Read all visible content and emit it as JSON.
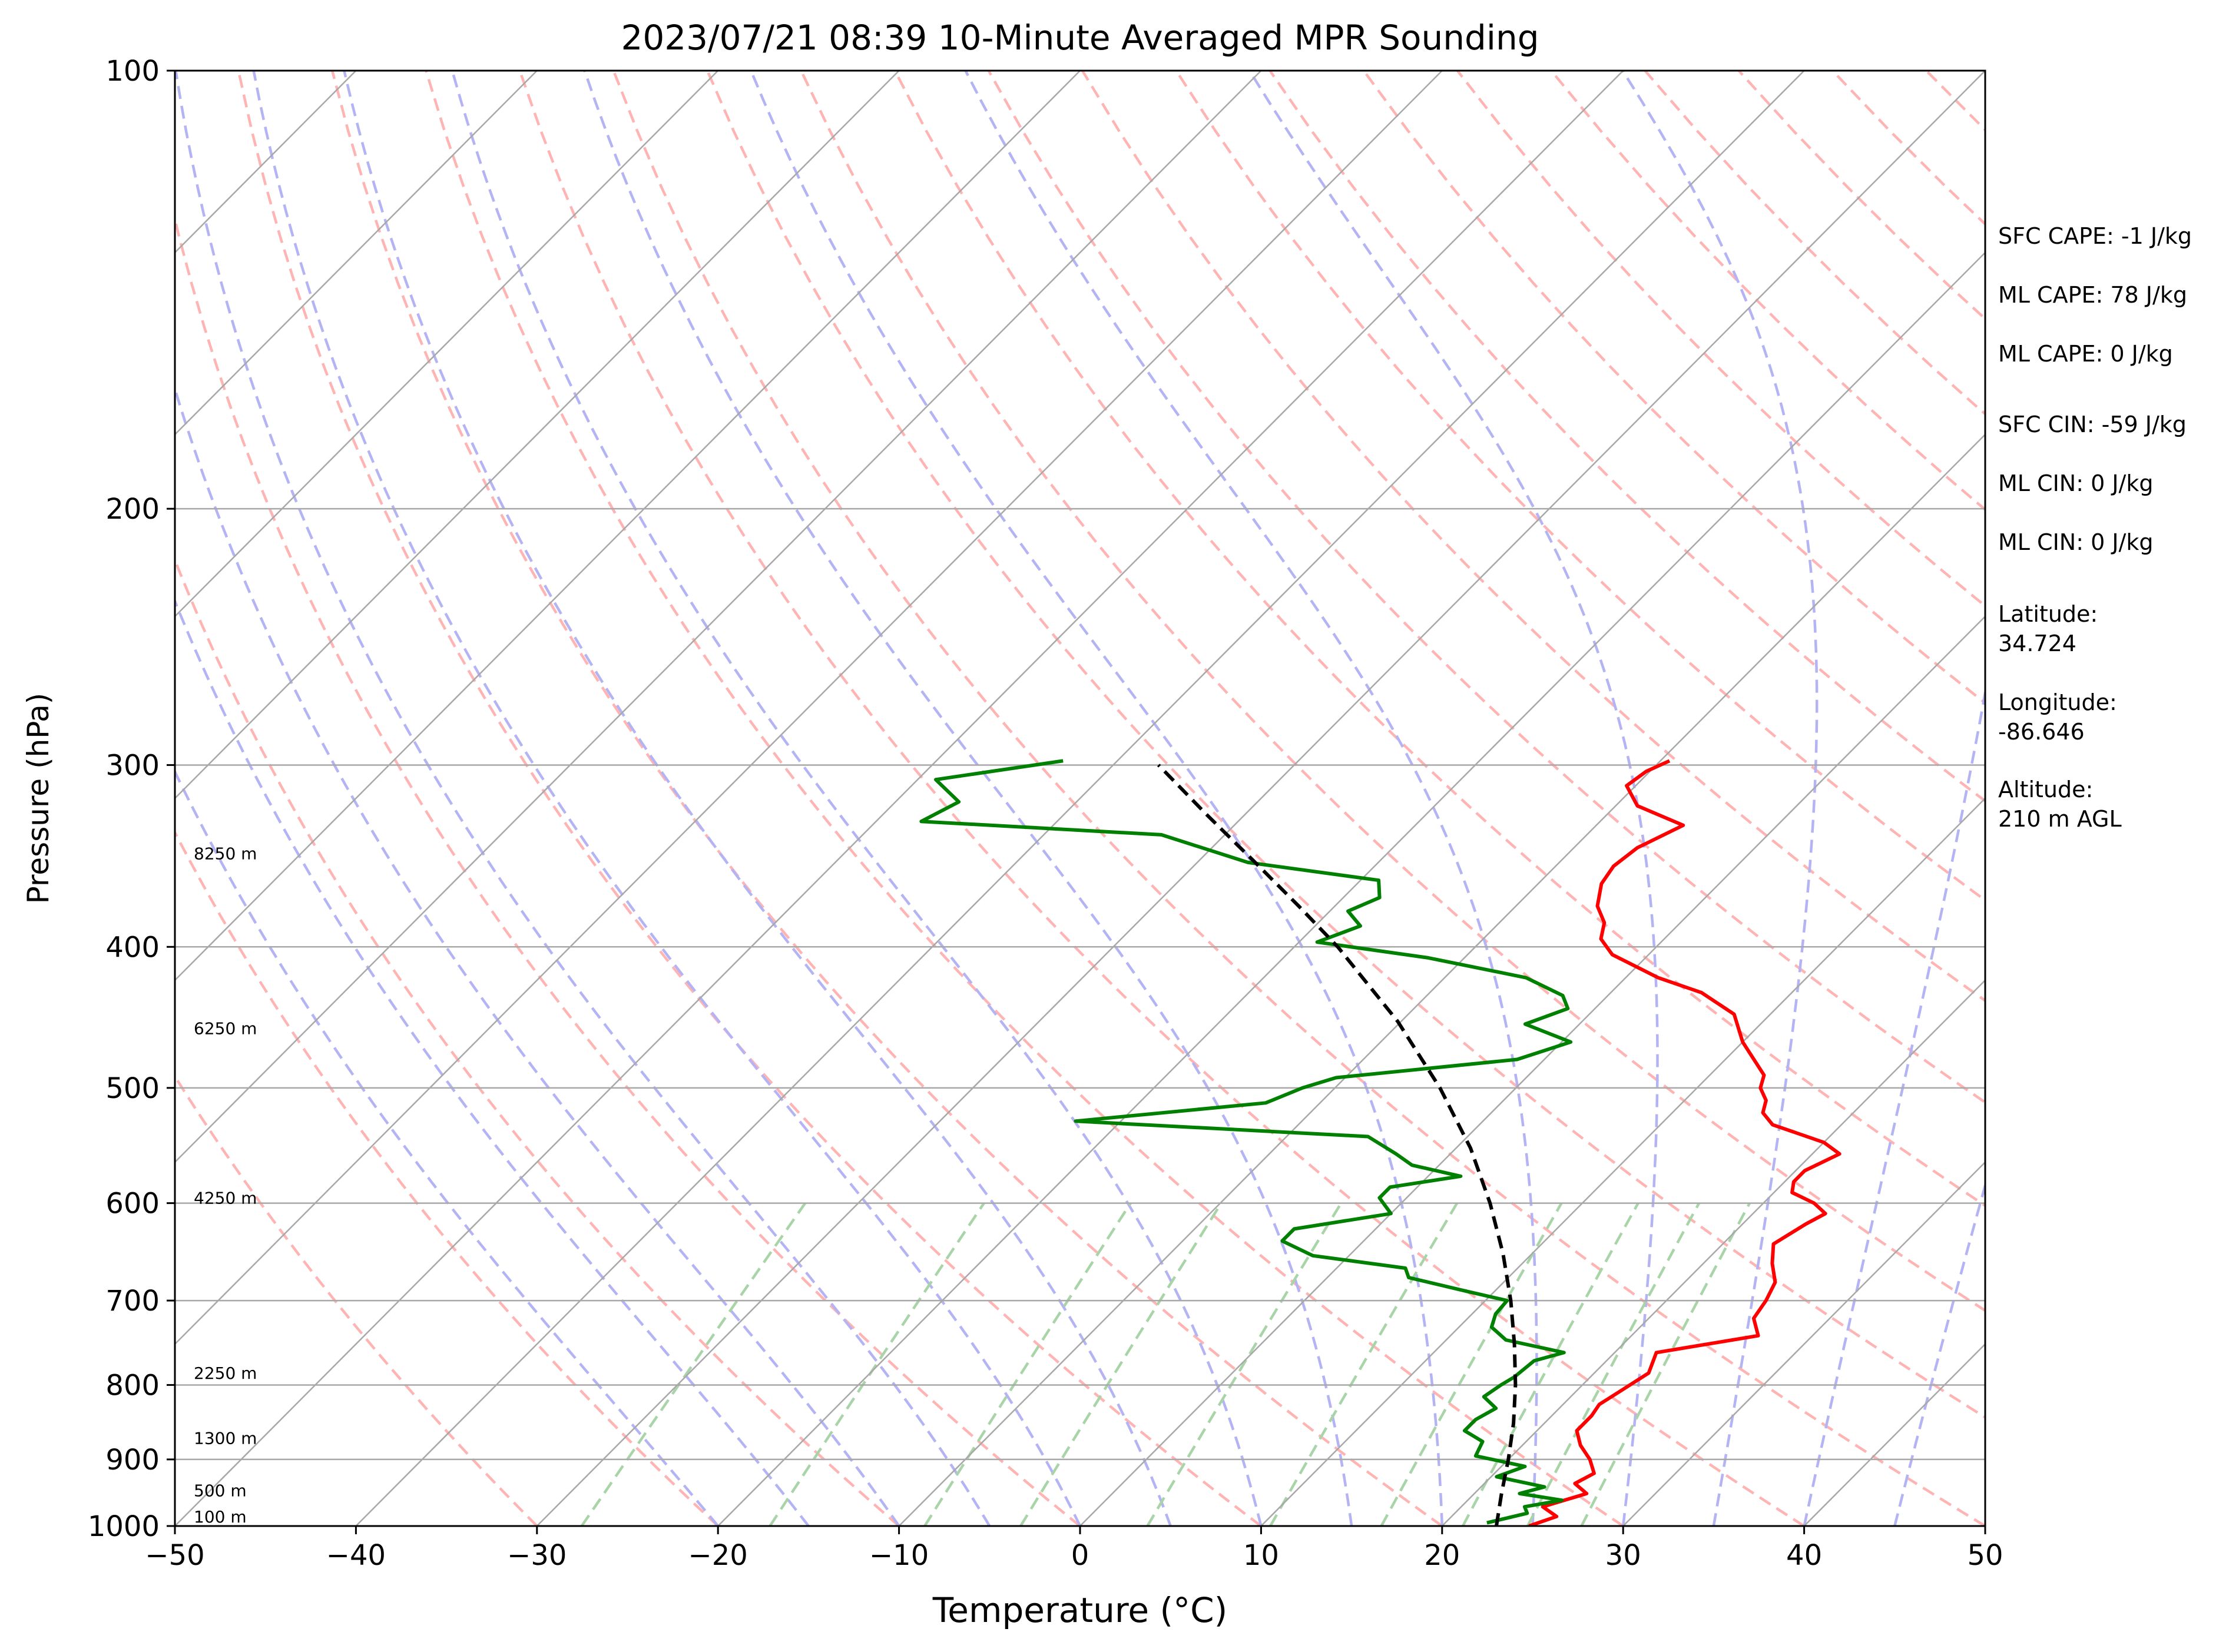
{
  "chart_data": {
    "type": "line",
    "title": "2023/07/21 08:39 10-Minute Averaged MPR Sounding",
    "xlabel": "Temperature (°C)",
    "ylabel": "Pressure (hPa)",
    "xlim": [
      -50,
      50
    ],
    "ylim": [
      1000,
      100
    ],
    "y_scale": "log",
    "skew": "skew-T",
    "grid": true,
    "x_ticks": [
      -50,
      -40,
      -30,
      -20,
      -10,
      0,
      10,
      20,
      30,
      40,
      50
    ],
    "x_tick_labels": [
      "−50",
      "−40",
      "−30",
      "−20",
      "−10",
      "0",
      "10",
      "20",
      "30",
      "40",
      "50"
    ],
    "y_ticks": [
      1000,
      900,
      800,
      700,
      600,
      500,
      400,
      300,
      200,
      100
    ],
    "y_tick_labels": [
      "1000",
      "900",
      "800",
      "700",
      "600",
      "500",
      "400",
      "300",
      "200",
      "100"
    ],
    "height_labels": [
      {
        "p": 985,
        "label": "100 m"
      },
      {
        "p": 945,
        "label": "500 m"
      },
      {
        "p": 870,
        "label": "1300 m"
      },
      {
        "p": 785,
        "label": "2250 m"
      },
      {
        "p": 595,
        "label": "4250 m"
      },
      {
        "p": 455,
        "label": "6250 m"
      },
      {
        "p": 345,
        "label": "8250 m"
      }
    ],
    "series": [
      {
        "color": "#ff0000",
        "style": "solid",
        "points": [
          [
            24.8,
            1000
          ],
          [
            25.8,
            985
          ],
          [
            24.5,
            970
          ],
          [
            26.2,
            950
          ],
          [
            25.0,
            935
          ],
          [
            25.5,
            920
          ],
          [
            24.5,
            900
          ],
          [
            23.2,
            880
          ],
          [
            22.2,
            860
          ],
          [
            22.2,
            840
          ],
          [
            22.0,
            825
          ],
          [
            22.5,
            805
          ],
          [
            23.0,
            785
          ],
          [
            22.3,
            760
          ],
          [
            27.0,
            740
          ],
          [
            25.8,
            720
          ],
          [
            25.5,
            700
          ],
          [
            25.0,
            680
          ],
          [
            23.8,
            660
          ],
          [
            22.8,
            640
          ],
          [
            23.5,
            620
          ],
          [
            24.0,
            610
          ],
          [
            22.8,
            600
          ],
          [
            21.0,
            590
          ],
          [
            20.5,
            580
          ],
          [
            20.5,
            570
          ],
          [
            21.5,
            555
          ],
          [
            20.0,
            545
          ],
          [
            16.2,
            530
          ],
          [
            15.0,
            520
          ],
          [
            14.5,
            510
          ],
          [
            13.5,
            500
          ],
          [
            13.0,
            490
          ],
          [
            10.0,
            465
          ],
          [
            8.0,
            445
          ],
          [
            5.0,
            430
          ],
          [
            1.8,
            420
          ],
          [
            -2.0,
            405
          ],
          [
            -3.5,
            395
          ],
          [
            -4.2,
            385
          ],
          [
            -5.5,
            375
          ],
          [
            -6.5,
            362
          ],
          [
            -6.8,
            352
          ],
          [
            -6.5,
            342
          ],
          [
            -5.2,
            330
          ],
          [
            -8.8,
            320
          ],
          [
            -10.5,
            310
          ],
          [
            -10.2,
            303
          ],
          [
            -9.5,
            298
          ]
        ]
      },
      {
        "color": "#008000",
        "style": "solid",
        "points": [
          [
            22.3,
            995
          ],
          [
            24.0,
            980
          ],
          [
            23.5,
            970
          ],
          [
            25.2,
            960
          ],
          [
            22.5,
            950
          ],
          [
            23.5,
            940
          ],
          [
            20.3,
            925
          ],
          [
            21.3,
            910
          ],
          [
            18.0,
            895
          ],
          [
            17.6,
            875
          ],
          [
            16.0,
            860
          ],
          [
            16.0,
            845
          ],
          [
            16.5,
            830
          ],
          [
            15.2,
            815
          ],
          [
            15.5,
            800
          ],
          [
            15.8,
            790
          ],
          [
            16.0,
            770
          ],
          [
            17.2,
            760
          ],
          [
            13.3,
            745
          ],
          [
            11.8,
            730
          ],
          [
            11.3,
            715
          ],
          [
            11.2,
            700
          ],
          [
            8.5,
            690
          ],
          [
            4.5,
            675
          ],
          [
            3.8,
            665
          ],
          [
            -2.0,
            652
          ],
          [
            -4.5,
            637
          ],
          [
            -4.5,
            625
          ],
          [
            0.0,
            610
          ],
          [
            -1.5,
            595
          ],
          [
            -1.5,
            585
          ],
          [
            1.8,
            575
          ],
          [
            -1.5,
            565
          ],
          [
            -3.0,
            555
          ],
          [
            -5.5,
            540
          ],
          [
            -22.5,
            527
          ],
          [
            -13.0,
            512
          ],
          [
            -11.8,
            500
          ],
          [
            -10.5,
            492
          ],
          [
            -1.5,
            478
          ],
          [
            0.5,
            465
          ],
          [
            -3.0,
            452
          ],
          [
            -1.5,
            441
          ],
          [
            -2.5,
            432
          ],
          [
            -5.5,
            420
          ],
          [
            -12.0,
            407
          ],
          [
            -19.0,
            397
          ],
          [
            -17.5,
            387
          ],
          [
            -19.0,
            378
          ],
          [
            -18.0,
            370
          ],
          [
            -19.0,
            360
          ],
          [
            -27.2,
            350
          ],
          [
            -33.5,
            335
          ],
          [
            -47.5,
            328
          ],
          [
            -46.5,
            318
          ],
          [
            -49.0,
            307
          ],
          [
            -43.0,
            298
          ]
        ]
      },
      {
        "color": "#000000",
        "style": "dashed",
        "points": [
          [
            23.0,
            1000
          ],
          [
            21.5,
            950
          ],
          [
            20.0,
            900
          ],
          [
            18.3,
            850
          ],
          [
            16.3,
            800
          ],
          [
            14.0,
            750
          ],
          [
            11.4,
            700
          ],
          [
            8.4,
            650
          ],
          [
            4.9,
            600
          ],
          [
            0.8,
            550
          ],
          [
            -4.2,
            500
          ],
          [
            -10.2,
            450
          ],
          [
            -17.6,
            400
          ],
          [
            -22.0,
            375
          ],
          [
            -26.8,
            350
          ],
          [
            -32.0,
            325
          ],
          [
            -37.5,
            300
          ]
        ]
      }
    ],
    "annotations": [
      "SFC CAPE: -1 J/kg",
      "ML CAPE: 78 J/kg",
      "ML CAPE: 0 J/kg",
      "SFC CIN: -59 J/kg",
      "ML CIN: 0 J/kg",
      "ML CIN: 0 J/kg",
      "Latitude:\n34.724",
      "Longitude:\n-86.646",
      "Altitude:\n210 m AGL"
    ],
    "colors": {
      "isotherm": "#a8a8a8",
      "isobar": "#a8a8a8",
      "dry_adiabat": "#ffb4b4",
      "moist_adiabat": "#b4b4f4",
      "mixing_ratio": "#a8d4a8"
    }
  }
}
